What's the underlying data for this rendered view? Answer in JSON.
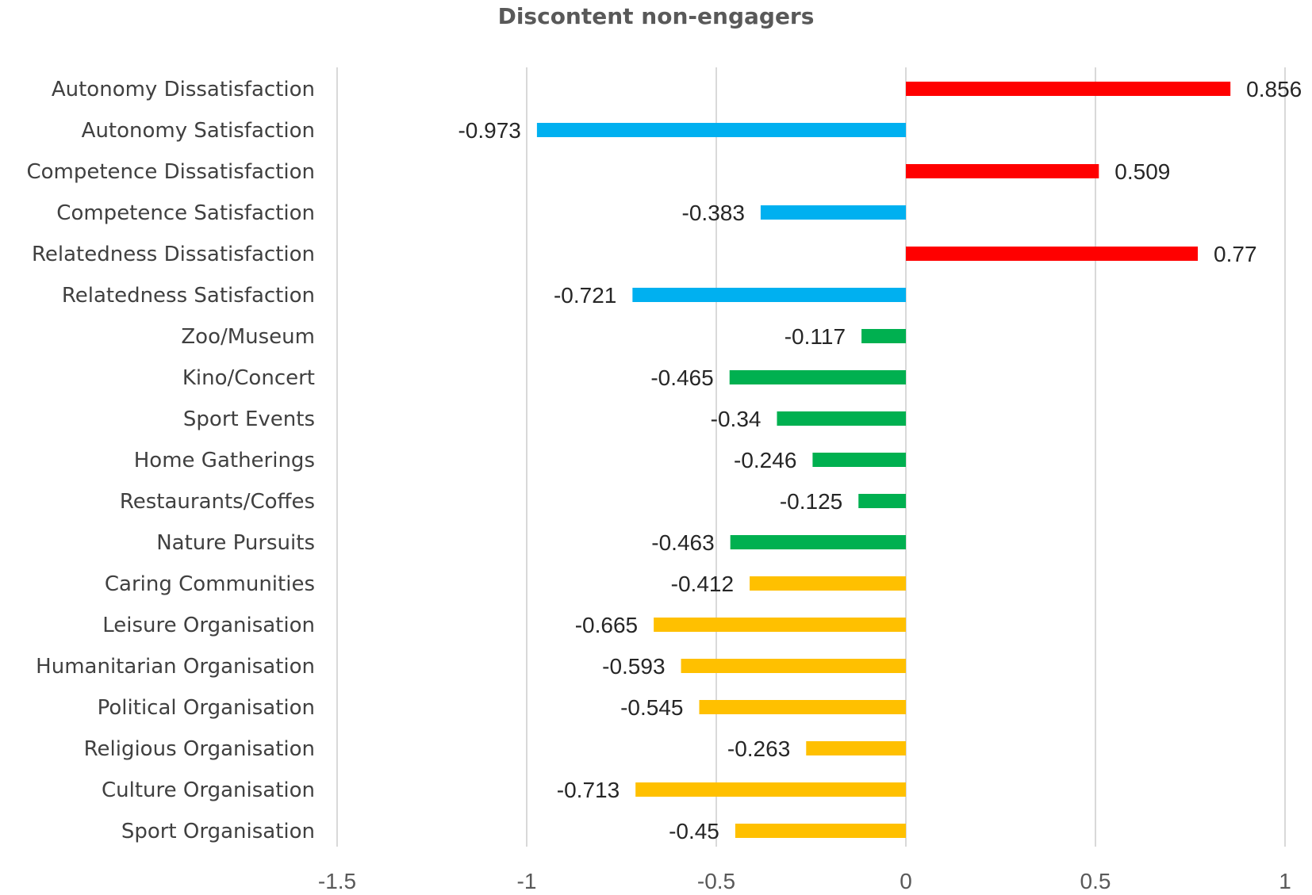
{
  "chart_data": {
    "type": "bar",
    "orientation": "horizontal",
    "title": "Discontent non-engagers",
    "xlabel": "",
    "ylabel": "",
    "xlim": [
      -1.5,
      1
    ],
    "xticks": [
      -1.5,
      -1,
      -0.5,
      0,
      0.5,
      1
    ],
    "xtick_labels": [
      "-1.5",
      "-1",
      "-0.5",
      "0",
      "0.5",
      "1"
    ],
    "grid": true,
    "legend": false,
    "categories": [
      "Autonomy Dissatisfaction",
      "Autonomy Satisfaction",
      "Competence Dissatisfaction",
      "Competence Satisfaction",
      "Relatedness Dissatisfaction",
      "Relatedness Satisfaction",
      "Zoo/Museum",
      "Kino/Concert",
      "Sport Events",
      "Home Gatherings",
      "Restaurants/Coffes",
      "Nature Pursuits",
      "Caring Communities",
      "Leisure Organisation",
      "Humanitarian Organisation",
      "Political Organisation",
      "Religious Organisation",
      "Culture Organisation",
      "Sport Organisation"
    ],
    "values": [
      0.856,
      -0.973,
      0.509,
      -0.383,
      0.77,
      -0.721,
      -0.117,
      -0.465,
      -0.34,
      -0.246,
      -0.125,
      -0.463,
      -0.412,
      -0.665,
      -0.593,
      -0.545,
      -0.263,
      -0.713,
      -0.45
    ],
    "value_labels": [
      "0.856",
      "-0.973",
      "0.509",
      "-0.383",
      "0.77",
      "-0.721",
      "-0.117",
      "-0.465",
      "-0.34",
      "-0.246",
      "-0.125",
      "-0.463",
      "-0.412",
      "-0.665",
      "-0.593",
      "-0.545",
      "-0.263",
      "-0.713",
      "-0.45"
    ],
    "bar_colors": [
      "#ff0000",
      "#00b0f0",
      "#ff0000",
      "#00b0f0",
      "#ff0000",
      "#00b0f0",
      "#00b050",
      "#00b050",
      "#00b050",
      "#00b050",
      "#00b050",
      "#00b050",
      "#ffc000",
      "#ffc000",
      "#ffc000",
      "#ffc000",
      "#ffc000",
      "#ffc000",
      "#ffc000"
    ]
  }
}
